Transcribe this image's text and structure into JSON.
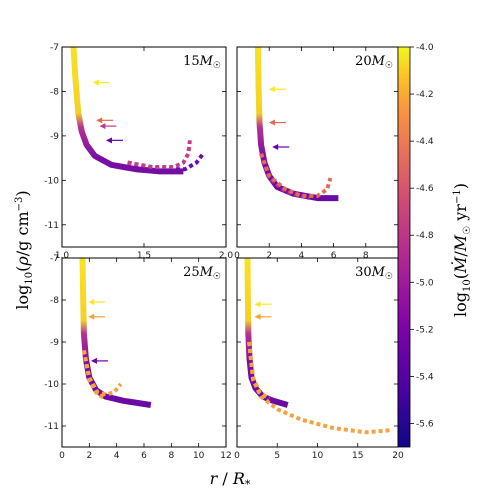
{
  "chart_data": {
    "type": "line",
    "xlabel": "r / R*",
    "ylabel": "log10(ρ/g cm⁻³)",
    "colorbar": {
      "label": "log10(Ṁ/M☉ yr⁻¹)",
      "range": [
        -5.7,
        -4.0
      ],
      "ticks": [
        "-4.0",
        "-4.2",
        "-4.4",
        "-4.6",
        "-4.8",
        "-5.0",
        "-5.2",
        "-5.4",
        "-5.6"
      ],
      "colormap": "plasma"
    },
    "panels": [
      {
        "label_mass": "15",
        "xlim": [
          1.0,
          2.0
        ],
        "ylim": [
          -11.5,
          -7.0
        ],
        "xticks": [
          "1.0",
          "1.5",
          "2.0"
        ],
        "yticks": [
          "-7",
          "-8",
          "-9",
          "-10",
          "-11"
        ],
        "solid": {
          "x": [
            1.07,
            1.08,
            1.09,
            1.1,
            1.12,
            1.15,
            1.2,
            1.3,
            1.45,
            1.6,
            1.74
          ],
          "y": [
            -7.0,
            -7.6,
            -8.1,
            -8.5,
            -8.9,
            -9.2,
            -9.45,
            -9.65,
            -9.75,
            -9.8,
            -9.8
          ]
        },
        "dashed_upper": {
          "x": [
            1.4,
            1.55,
            1.68,
            1.74,
            1.77,
            1.78
          ],
          "y": [
            -9.6,
            -9.7,
            -9.7,
            -9.6,
            -9.4,
            -9.1
          ]
        },
        "dashed_lower": {
          "x": [
            1.4,
            1.6,
            1.75,
            1.82,
            1.86
          ],
          "y": [
            -9.6,
            -9.75,
            -9.75,
            -9.6,
            -9.4
          ]
        },
        "arrows": [
          {
            "x": 1.17,
            "y": -7.8,
            "color": "#fde725"
          },
          {
            "x": 1.19,
            "y": -8.65,
            "color": "#e86a4d"
          },
          {
            "x": 1.21,
            "y": -8.78,
            "color": "#c23a91"
          },
          {
            "x": 1.25,
            "y": -9.1,
            "color": "#6a00a8"
          }
        ]
      },
      {
        "label_mass": "20",
        "xlim": [
          0,
          10
        ],
        "ylim": [
          -11.5,
          -7.0
        ],
        "xticks": [
          "0",
          "2",
          "4",
          "6",
          "8"
        ],
        "yticks": [],
        "solid": {
          "x": [
            1.3,
            1.35,
            1.4,
            1.5,
            1.7,
            2.0,
            2.5,
            3.5,
            5.0,
            6.3
          ],
          "y": [
            -7.0,
            -8.0,
            -8.7,
            -9.2,
            -9.6,
            -9.9,
            -10.15,
            -10.3,
            -10.4,
            -10.4
          ]
        },
        "dashed_upper": {
          "x": [
            1.5,
            2.0,
            3.0,
            4.0,
            5.0,
            5.6,
            5.8
          ],
          "y": [
            -9.4,
            -9.9,
            -10.2,
            -10.35,
            -10.35,
            -10.2,
            -9.95
          ]
        },
        "dashed_lower": {
          "x": [
            1.5,
            2.0,
            3.0,
            4.5
          ],
          "y": [
            -9.4,
            -9.95,
            -10.25,
            -10.4
          ]
        },
        "arrows": [
          {
            "x": 1.8,
            "y": -7.95,
            "color": "#fde725"
          },
          {
            "x": 1.8,
            "y": -8.7,
            "color": "#e86a4d"
          },
          {
            "x": 2.0,
            "y": -9.25,
            "color": "#6a00a8"
          }
        ]
      },
      {
        "label_mass": "25",
        "xlim": [
          0,
          12
        ],
        "ylim": [
          -11.5,
          -7.0
        ],
        "xticks": [
          "0",
          "2",
          "4",
          "6",
          "8",
          "10",
          "12"
        ],
        "yticks": [
          "-7",
          "-8",
          "-9",
          "-10",
          "-11"
        ],
        "solid": {
          "x": [
            1.5,
            1.55,
            1.6,
            1.75,
            2.0,
            2.5,
            3.2,
            4.5,
            6.5
          ],
          "y": [
            -7.0,
            -8.0,
            -8.8,
            -9.4,
            -9.85,
            -10.15,
            -10.3,
            -10.4,
            -10.5
          ]
        },
        "dashed_upper": {
          "x": [
            1.6,
            2.0,
            2.6,
            3.2,
            3.8,
            4.3
          ],
          "y": [
            -9.2,
            -9.85,
            -10.2,
            -10.25,
            -10.2,
            -10.0
          ]
        },
        "dashed_lower": {
          "x": [
            1.6,
            2.0,
            2.6,
            3.2
          ],
          "y": [
            -9.2,
            -9.9,
            -10.25,
            -10.35
          ]
        },
        "arrows": [
          {
            "x": 1.7,
            "y": -8.05,
            "color": "#fde725"
          },
          {
            "x": 1.7,
            "y": -8.4,
            "color": "#fba238"
          },
          {
            "x": 1.9,
            "y": -9.45,
            "color": "#6a00a8"
          }
        ]
      },
      {
        "label_mass": "30",
        "xlim": [
          0,
          20
        ],
        "ylim": [
          -11.5,
          -7.0
        ],
        "xticks": [
          "0",
          "5",
          "10",
          "15",
          "20"
        ],
        "yticks": [],
        "solid": {
          "x": [
            1.3,
            1.35,
            1.4,
            1.55,
            1.8,
            2.3,
            3.2,
            4.5,
            6.3
          ],
          "y": [
            -7.0,
            -8.0,
            -8.8,
            -9.4,
            -9.85,
            -10.1,
            -10.3,
            -10.4,
            -10.5
          ]
        },
        "dashed_upper": {
          "x": [
            1.5,
            2.0,
            3.0,
            5.0,
            8.0,
            12.0,
            16.0,
            19.0
          ],
          "y": [
            -9.0,
            -9.9,
            -10.3,
            -10.6,
            -10.85,
            -11.05,
            -11.15,
            -11.1
          ]
        },
        "dashed_lower": {
          "x": [
            1.5,
            2.0,
            2.8,
            4.0
          ],
          "y": [
            -9.0,
            -9.85,
            -10.2,
            -10.35
          ]
        },
        "arrows": [
          {
            "x": 1.8,
            "y": -8.1,
            "color": "#fde725"
          },
          {
            "x": 1.8,
            "y": -8.4,
            "color": "#fba238"
          }
        ]
      }
    ]
  }
}
